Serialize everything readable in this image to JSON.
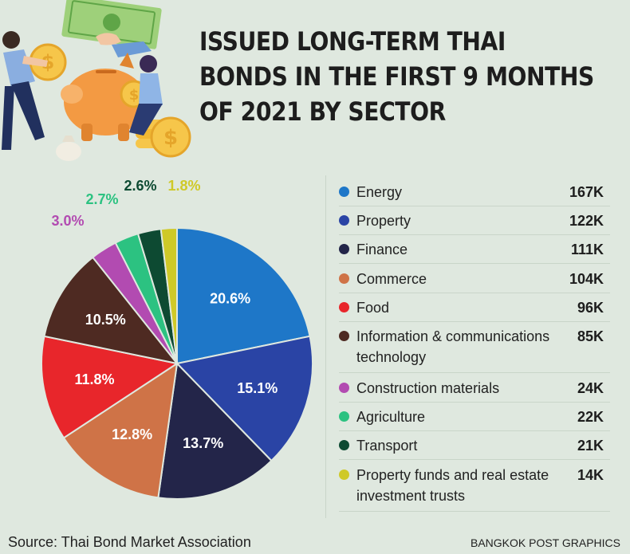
{
  "header": {
    "title_lines": [
      "ISSUED LONG-TERM THAI",
      "BONDS IN THE FIRST 9 MONTHS",
      "OF 2021 BY SECTOR"
    ]
  },
  "chart_data": {
    "type": "pie",
    "title": "ISSUED LONG-TERM THAI BONDS IN THE FIRST 9 MONTHS OF 2021 BY SECTOR",
    "unit": "THB",
    "slices": [
      {
        "label": "Energy",
        "value": "167K",
        "percent": 20.6,
        "percent_label": "20.6%",
        "color": "#1e77c8"
      },
      {
        "label": "Property",
        "value": "122K",
        "percent": 15.1,
        "percent_label": "15.1%",
        "color": "#2a44a5"
      },
      {
        "label": "Finance",
        "value": "111K",
        "percent": 13.7,
        "percent_label": "13.7%",
        "color": "#232549"
      },
      {
        "label": "Commerce",
        "value": "104K",
        "percent": 12.8,
        "percent_label": "12.8%",
        "color": "#cf7347"
      },
      {
        "label": "Food",
        "value": "96K",
        "percent": 11.8,
        "percent_label": "11.8%",
        "color": "#e8262b"
      },
      {
        "label": "Information & communications technology",
        "value": "85K",
        "percent": 10.5,
        "percent_label": "10.5%",
        "color": "#4e2a22"
      },
      {
        "label": "Construction materials",
        "value": "24K",
        "percent": 3.0,
        "percent_label": "3.0%",
        "color": "#b24bb1"
      },
      {
        "label": "Agriculture",
        "value": "22K",
        "percent": 2.7,
        "percent_label": "2.7%",
        "color": "#2cc281"
      },
      {
        "label": "Transport",
        "value": "21K",
        "percent": 2.6,
        "percent_label": "2.6%",
        "color": "#0d4a32"
      },
      {
        "label": "Property funds and real estate investment trusts",
        "value": "14K",
        "percent": 1.8,
        "percent_label": "1.8%",
        "color": "#cfc928"
      }
    ],
    "legend_position": "right"
  },
  "footer": {
    "source": "Source: Thai Bond Market Association",
    "credit": "BANGKOK POST GRAPHICS"
  },
  "illustration": {
    "icon": "money-saving-people-icon"
  }
}
